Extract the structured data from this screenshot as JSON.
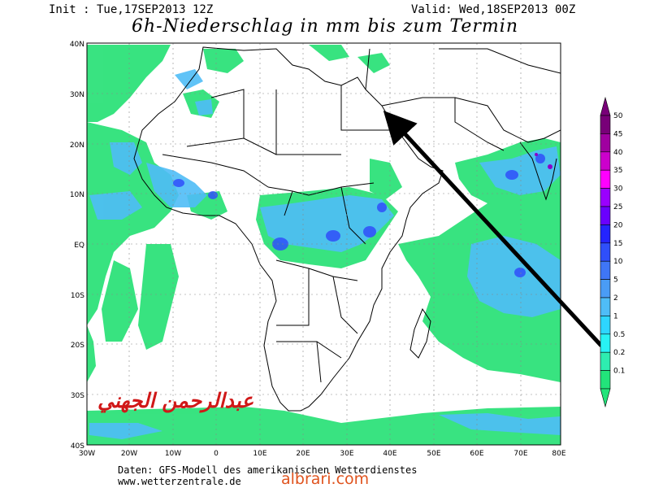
{
  "header": {
    "init": "Init : Tue,17SEP2013 12Z",
    "valid": "Valid: Wed,18SEP2013 00Z",
    "title": "6h-Niederschlag in mm bis zum Termin"
  },
  "map": {
    "lat_labels": [
      "40N",
      "30N",
      "20N",
      "10N",
      "EQ",
      "10S",
      "20S",
      "30S",
      "40S"
    ],
    "lon_labels": [
      "30W",
      "20W",
      "10W",
      "0",
      "10E",
      "20E",
      "30E",
      "40E",
      "50E",
      "60E",
      "70E",
      "80E"
    ],
    "arrow": "black arrow pointing to the Red Sea coast near 40E, 26N"
  },
  "legend": {
    "levels": [
      "50",
      "45",
      "40",
      "35",
      "30",
      "25",
      "20",
      "15",
      "10",
      "5",
      "2",
      "1",
      "0.5",
      "0.2",
      "0.1"
    ],
    "colors": [
      "#780078",
      "#a000a0",
      "#cc00cc",
      "#ff00ff",
      "#9a00ff",
      "#6a00ff",
      "#2424ff",
      "#2f4ffa",
      "#3f76f6",
      "#4a9cf5",
      "#4fbdf7",
      "#2ed6ff",
      "#28f2f4",
      "#2eedb0",
      "#22e47a"
    ]
  },
  "footer": {
    "credit_line1": "Daten: GFS-Modell des amerikanischen Wetterdienstes",
    "credit_line2": "www.wetterzentrale.de",
    "watermark": "albrari.com",
    "signature": "عبدالرحمن الجهني"
  }
}
